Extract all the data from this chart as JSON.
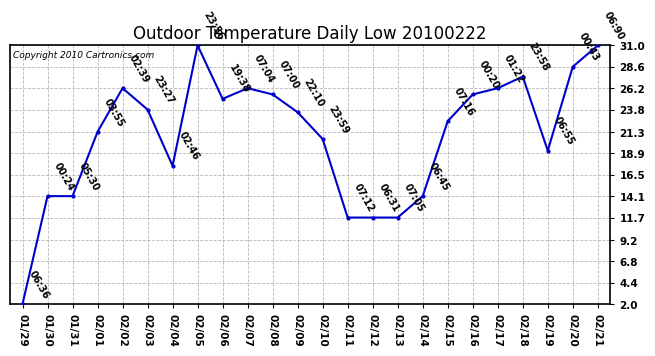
{
  "title": "Outdoor Temperature Daily Low 20100222",
  "copyright": "Copyright 2010 Cartronics.com",
  "x_labels": [
    "01/29",
    "01/30",
    "01/31",
    "02/01",
    "02/02",
    "02/03",
    "02/04",
    "02/05",
    "02/06",
    "02/07",
    "02/08",
    "02/09",
    "02/10",
    "02/11",
    "02/12",
    "02/13",
    "02/14",
    "02/15",
    "02/16",
    "02/17",
    "02/18",
    "02/19",
    "02/20",
    "02/21"
  ],
  "y_values": [
    2.0,
    14.1,
    14.1,
    21.3,
    26.2,
    23.8,
    17.5,
    31.0,
    25.0,
    26.2,
    25.5,
    23.5,
    20.5,
    11.7,
    11.7,
    11.7,
    14.1,
    22.5,
    25.5,
    26.2,
    27.5,
    19.2,
    28.6,
    31.0
  ],
  "point_labels": [
    "06:36",
    "00:24",
    "05:30",
    "03:55",
    "02:39",
    "23:27",
    "02:46",
    "23:56",
    "19:38",
    "07:04",
    "07:00",
    "22:10",
    "23:59",
    "07:12",
    "06:31",
    "07:05",
    "06:45",
    "07:16",
    "00:20",
    "01:22",
    "23:58",
    "06:55",
    "00:43",
    "06:90"
  ],
  "y_ticks": [
    2.0,
    4.4,
    6.8,
    9.2,
    11.7,
    14.1,
    16.5,
    18.9,
    21.3,
    23.8,
    26.2,
    28.6,
    31.0
  ],
  "ylim": [
    2.0,
    31.0
  ],
  "line_color": "#0000cc",
  "marker_color": "#0000cc",
  "bg_color": "#ffffff",
  "grid_color": "#b0b0b0",
  "title_fontsize": 12,
  "tick_fontsize": 7.5,
  "annot_fontsize": 7,
  "label_rotation": -60
}
